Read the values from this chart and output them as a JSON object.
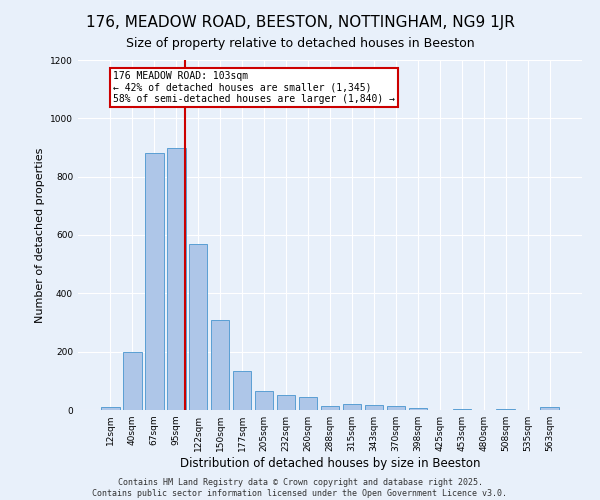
{
  "title": "176, MEADOW ROAD, BEESTON, NOTTINGHAM, NG9 1JR",
  "subtitle": "Size of property relative to detached houses in Beeston",
  "xlabel": "Distribution of detached houses by size in Beeston",
  "ylabel": "Number of detached properties",
  "footer_line1": "Contains HM Land Registry data © Crown copyright and database right 2025.",
  "footer_line2": "Contains public sector information licensed under the Open Government Licence v3.0.",
  "categories": [
    "12sqm",
    "40sqm",
    "67sqm",
    "95sqm",
    "122sqm",
    "150sqm",
    "177sqm",
    "205sqm",
    "232sqm",
    "260sqm",
    "288sqm",
    "315sqm",
    "343sqm",
    "370sqm",
    "398sqm",
    "425sqm",
    "453sqm",
    "480sqm",
    "508sqm",
    "535sqm",
    "563sqm"
  ],
  "values": [
    10,
    200,
    880,
    900,
    570,
    310,
    135,
    65,
    50,
    45,
    15,
    20,
    18,
    14,
    8,
    0,
    3,
    0,
    3,
    0,
    10
  ],
  "bar_color": "#aec6e8",
  "bar_edge_color": "#5a9fd4",
  "background_color": "#e8f0fa",
  "grid_color": "#ffffff",
  "vline_x": 3.42,
  "vline_color": "#cc0000",
  "annotation_text": "176 MEADOW ROAD: 103sqm\n← 42% of detached houses are smaller (1,345)\n58% of semi-detached houses are larger (1,840) →",
  "annotation_box_color": "#ffffff",
  "annotation_box_edge_color": "#cc0000",
  "ylim": [
    0,
    1200
  ],
  "yticks": [
    0,
    200,
    400,
    600,
    800,
    1000,
    1200
  ],
  "title_fontsize": 11,
  "subtitle_fontsize": 9,
  "ylabel_fontsize": 8,
  "xlabel_fontsize": 8.5,
  "tick_fontsize": 6.5,
  "footer_fontsize": 6,
  "ann_fontsize": 7
}
